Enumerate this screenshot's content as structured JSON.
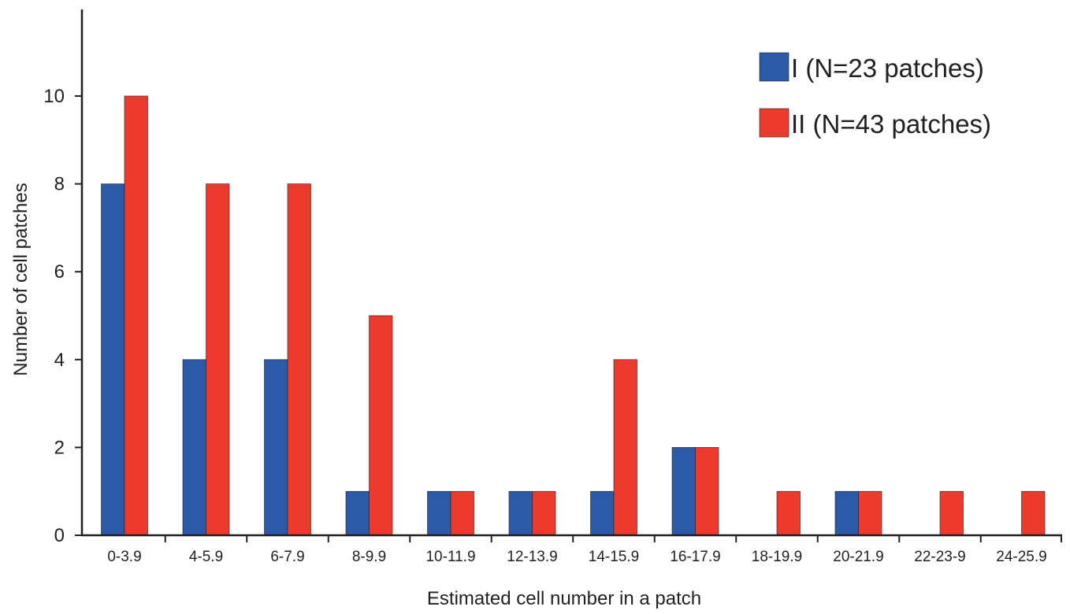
{
  "chart_data": {
    "type": "bar",
    "title": "",
    "xlabel": "Estimated cell number in a patch",
    "ylabel": "Number of cell patches",
    "ylim": [
      0,
      10
    ],
    "yticks": [
      "0",
      "2",
      "4",
      "6",
      "8",
      "10"
    ],
    "categories": [
      "0-3.9",
      "4-5.9",
      "6-7.9",
      "8-9.9",
      "10-11.9",
      "12-13.9",
      "14-15.9",
      "16-17.9",
      "18-19.9",
      "20-21.9",
      "22-23-9",
      "24-25.9"
    ],
    "series": [
      {
        "name": "I (N=23 patches)",
        "color": "#2b5aa8",
        "values": [
          8,
          4,
          4,
          1,
          1,
          1,
          1,
          2,
          0,
          1,
          0,
          0
        ]
      },
      {
        "name": "II (N=43 patches)",
        "color": "#ec3a2d",
        "values": [
          10,
          8,
          8,
          5,
          1,
          1,
          4,
          2,
          1,
          1,
          1,
          1
        ]
      }
    ],
    "legend_position": "top-right",
    "grid": false
  }
}
